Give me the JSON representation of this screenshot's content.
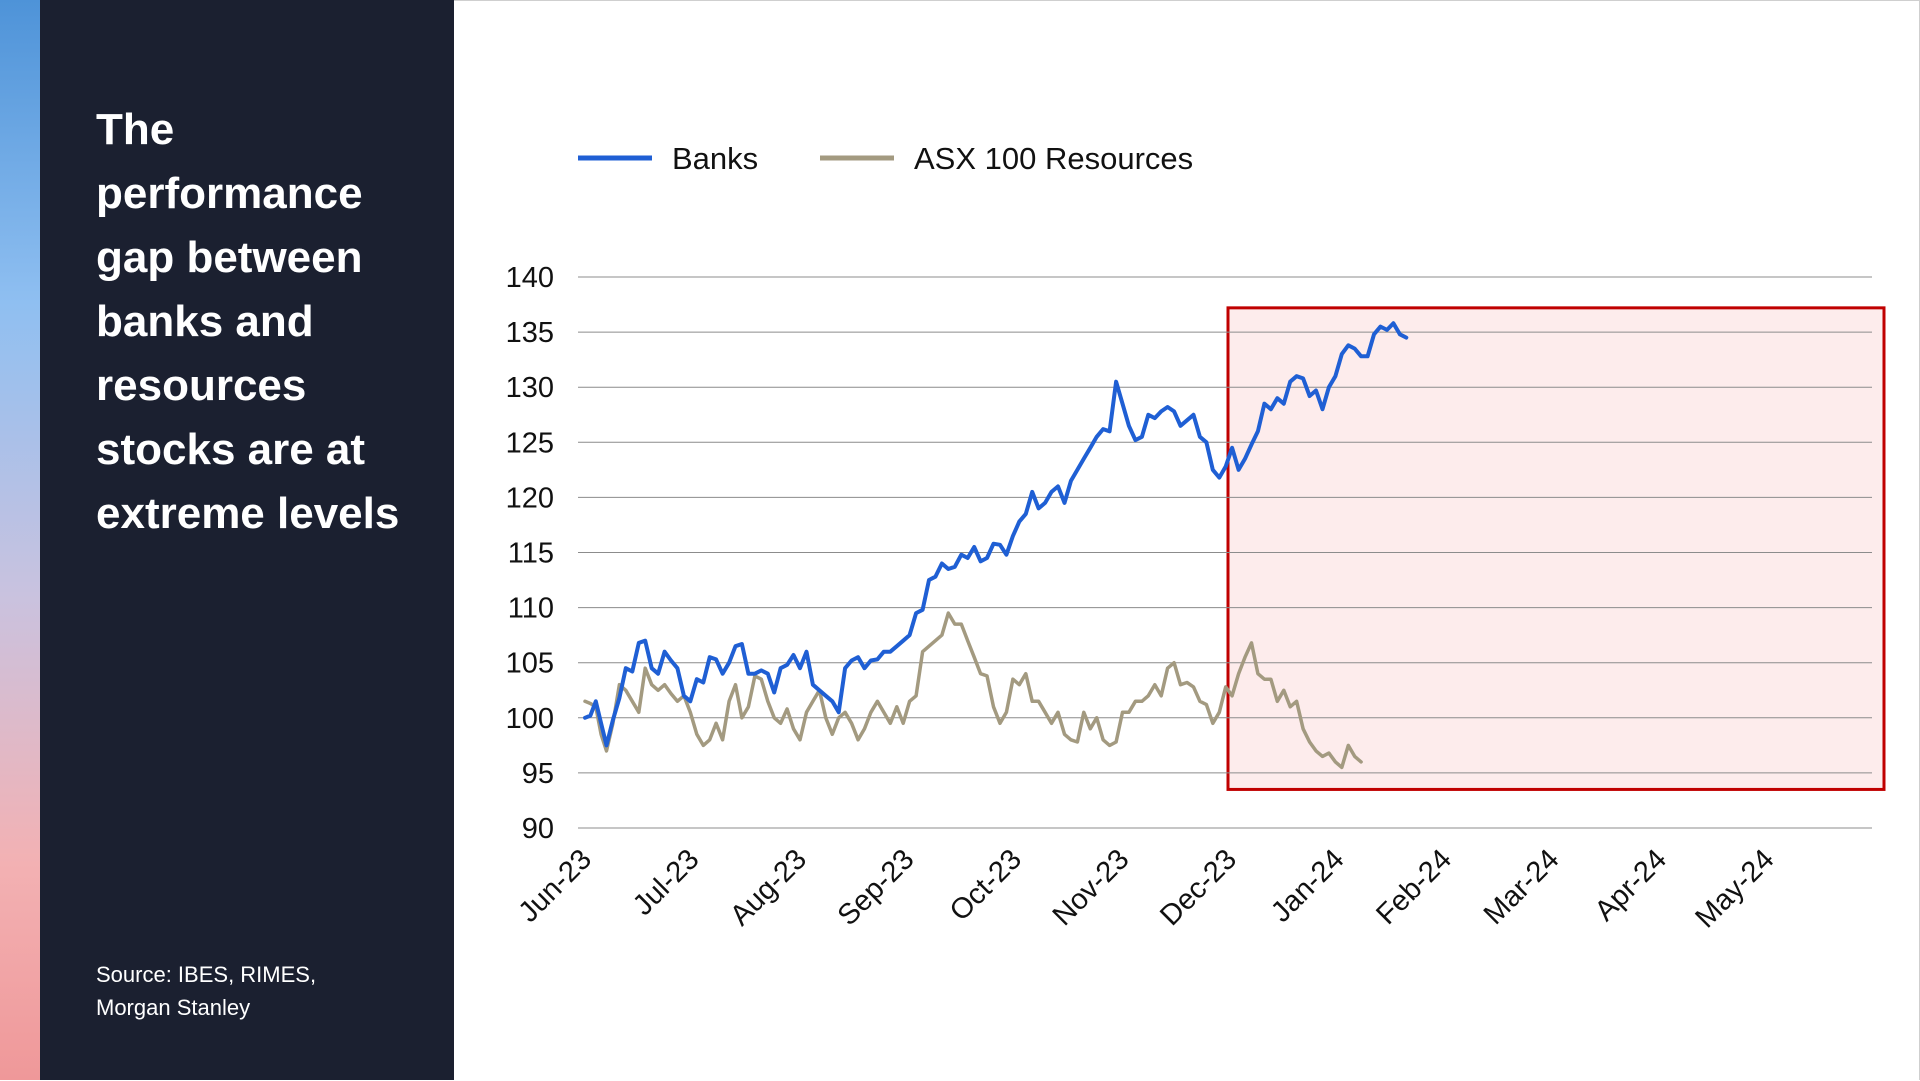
{
  "headline": "The performance gap between banks and resources stocks are at extreme levels",
  "source": "Source: IBES, RIMES, Morgan Stanley",
  "colors": {
    "banks": "#1f5fd4",
    "resources": "#a39a80",
    "highlight_fill": "#fdecec",
    "highlight_border": "#c00000",
    "sidebar": "#1b2030"
  },
  "chart_data": {
    "type": "line",
    "title": "",
    "xlabel": "",
    "ylabel": "",
    "ylim": [
      90,
      140
    ],
    "yticks": [
      90,
      95,
      100,
      105,
      110,
      115,
      120,
      125,
      130,
      135,
      140
    ],
    "x_tick_labels": [
      "Jun-23",
      "Jul-23",
      "Aug-23",
      "Sep-23",
      "Oct-23",
      "Nov-23",
      "Dec-23",
      "Jan-24",
      "Feb-24",
      "Mar-24",
      "Apr-24",
      "May-24"
    ],
    "grid": "horizontal",
    "legend": "top-left",
    "highlight_region": {
      "from": "Dec-23",
      "to": "May-24",
      "ymin": 93.5,
      "ymax": 137.2
    },
    "series": [
      {
        "name": "Banks",
        "points": [
          [
            0,
            100.0
          ],
          [
            0.05,
            100.2
          ],
          [
            0.1,
            101.5
          ],
          [
            0.15,
            99.5
          ],
          [
            0.2,
            97.5
          ],
          [
            0.26,
            99.8
          ],
          [
            0.32,
            101.8
          ],
          [
            0.38,
            104.5
          ],
          [
            0.44,
            104.2
          ],
          [
            0.5,
            106.8
          ],
          [
            0.56,
            107.0
          ],
          [
            0.62,
            104.5
          ],
          [
            0.68,
            104.0
          ],
          [
            0.74,
            106.0
          ],
          [
            0.8,
            105.2
          ],
          [
            0.86,
            104.5
          ],
          [
            0.92,
            102.0
          ],
          [
            0.98,
            101.5
          ],
          [
            1.04,
            103.5
          ],
          [
            1.1,
            103.2
          ],
          [
            1.16,
            105.5
          ],
          [
            1.22,
            105.3
          ],
          [
            1.28,
            104.0
          ],
          [
            1.34,
            105.0
          ],
          [
            1.4,
            106.5
          ],
          [
            1.46,
            106.7
          ],
          [
            1.52,
            104.0
          ],
          [
            1.58,
            104.0
          ],
          [
            1.64,
            104.3
          ],
          [
            1.7,
            104.0
          ],
          [
            1.76,
            102.3
          ],
          [
            1.82,
            104.5
          ],
          [
            1.88,
            104.8
          ],
          [
            1.94,
            105.7
          ],
          [
            2.0,
            104.5
          ],
          [
            2.06,
            106.0
          ],
          [
            2.12,
            103.0
          ],
          [
            2.18,
            102.5
          ],
          [
            2.24,
            102.0
          ],
          [
            2.3,
            101.5
          ],
          [
            2.36,
            100.5
          ],
          [
            2.42,
            104.5
          ],
          [
            2.48,
            105.2
          ],
          [
            2.54,
            105.5
          ],
          [
            2.6,
            104.5
          ],
          [
            2.66,
            105.2
          ],
          [
            2.72,
            105.3
          ],
          [
            2.78,
            106.0
          ],
          [
            2.84,
            106.0
          ],
          [
            2.9,
            106.5
          ],
          [
            2.96,
            107.0
          ],
          [
            3.02,
            107.5
          ],
          [
            3.08,
            109.5
          ],
          [
            3.14,
            109.8
          ],
          [
            3.2,
            112.5
          ],
          [
            3.26,
            112.8
          ],
          [
            3.32,
            114.0
          ],
          [
            3.38,
            113.5
          ],
          [
            3.44,
            113.7
          ],
          [
            3.5,
            114.8
          ],
          [
            3.56,
            114.5
          ],
          [
            3.62,
            115.5
          ],
          [
            3.68,
            114.2
          ],
          [
            3.74,
            114.5
          ],
          [
            3.8,
            115.8
          ],
          [
            3.86,
            115.7
          ],
          [
            3.92,
            114.8
          ],
          [
            3.98,
            116.5
          ],
          [
            4.04,
            117.8
          ],
          [
            4.1,
            118.5
          ],
          [
            4.16,
            120.5
          ],
          [
            4.22,
            119.0
          ],
          [
            4.28,
            119.5
          ],
          [
            4.34,
            120.5
          ],
          [
            4.4,
            121.0
          ],
          [
            4.46,
            119.5
          ],
          [
            4.52,
            121.5
          ],
          [
            4.58,
            122.5
          ],
          [
            4.64,
            123.5
          ],
          [
            4.7,
            124.5
          ],
          [
            4.76,
            125.5
          ],
          [
            4.82,
            126.2
          ],
          [
            4.88,
            126.0
          ],
          [
            4.94,
            130.5
          ],
          [
            5.0,
            128.5
          ],
          [
            5.06,
            126.5
          ],
          [
            5.12,
            125.2
          ],
          [
            5.18,
            125.5
          ],
          [
            5.24,
            127.5
          ],
          [
            5.3,
            127.2
          ],
          [
            5.36,
            127.8
          ],
          [
            5.42,
            128.2
          ],
          [
            5.48,
            127.8
          ],
          [
            5.54,
            126.5
          ],
          [
            5.6,
            127.0
          ],
          [
            5.66,
            127.5
          ],
          [
            5.72,
            125.5
          ],
          [
            5.78,
            125.0
          ],
          [
            5.84,
            122.5
          ],
          [
            5.9,
            121.8
          ],
          [
            5.96,
            122.8
          ],
          [
            6.02,
            124.5
          ],
          [
            6.08,
            122.5
          ],
          [
            6.14,
            123.5
          ],
          [
            6.2,
            124.8
          ],
          [
            6.26,
            126.0
          ],
          [
            6.32,
            128.5
          ],
          [
            6.38,
            128.0
          ],
          [
            6.44,
            129.0
          ],
          [
            6.5,
            128.5
          ],
          [
            6.56,
            130.5
          ],
          [
            6.62,
            131.0
          ],
          [
            6.68,
            130.8
          ],
          [
            6.74,
            129.2
          ],
          [
            6.8,
            129.7
          ],
          [
            6.86,
            128.0
          ],
          [
            6.92,
            130.0
          ],
          [
            6.98,
            131.0
          ],
          [
            7.04,
            133.0
          ],
          [
            7.1,
            133.8
          ],
          [
            7.16,
            133.5
          ],
          [
            7.22,
            132.8
          ],
          [
            7.28,
            132.8
          ],
          [
            7.34,
            134.8
          ],
          [
            7.4,
            135.5
          ],
          [
            7.46,
            135.2
          ],
          [
            7.52,
            135.8
          ],
          [
            7.58,
            134.8
          ],
          [
            7.64,
            134.5
          ]
        ]
      },
      {
        "name": "ASX 100 Resources",
        "points": [
          [
            0,
            101.5
          ],
          [
            0.05,
            101.3
          ],
          [
            0.1,
            101.0
          ],
          [
            0.15,
            98.5
          ],
          [
            0.2,
            97.0
          ],
          [
            0.26,
            99.5
          ],
          [
            0.32,
            103.0
          ],
          [
            0.38,
            102.5
          ],
          [
            0.44,
            101.5
          ],
          [
            0.5,
            100.5
          ],
          [
            0.56,
            104.5
          ],
          [
            0.62,
            103.0
          ],
          [
            0.68,
            102.5
          ],
          [
            0.74,
            103.0
          ],
          [
            0.8,
            102.2
          ],
          [
            0.86,
            101.5
          ],
          [
            0.92,
            102.0
          ],
          [
            0.98,
            100.5
          ],
          [
            1.04,
            98.5
          ],
          [
            1.1,
            97.5
          ],
          [
            1.16,
            98.0
          ],
          [
            1.22,
            99.5
          ],
          [
            1.28,
            98.0
          ],
          [
            1.34,
            101.5
          ],
          [
            1.4,
            103.0
          ],
          [
            1.46,
            100.0
          ],
          [
            1.52,
            101.0
          ],
          [
            1.58,
            103.8
          ],
          [
            1.64,
            103.5
          ],
          [
            1.7,
            101.5
          ],
          [
            1.76,
            100.0
          ],
          [
            1.82,
            99.5
          ],
          [
            1.88,
            100.8
          ],
          [
            1.94,
            99.0
          ],
          [
            2.0,
            98.0
          ],
          [
            2.06,
            100.5
          ],
          [
            2.12,
            101.5
          ],
          [
            2.18,
            102.5
          ],
          [
            2.24,
            100.0
          ],
          [
            2.3,
            98.5
          ],
          [
            2.36,
            100.0
          ],
          [
            2.42,
            100.5
          ],
          [
            2.48,
            99.5
          ],
          [
            2.54,
            98.0
          ],
          [
            2.6,
            99.0
          ],
          [
            2.66,
            100.5
          ],
          [
            2.72,
            101.5
          ],
          [
            2.78,
            100.5
          ],
          [
            2.84,
            99.5
          ],
          [
            2.9,
            101.0
          ],
          [
            2.96,
            99.5
          ],
          [
            3.02,
            101.5
          ],
          [
            3.08,
            102.0
          ],
          [
            3.14,
            106.0
          ],
          [
            3.2,
            106.5
          ],
          [
            3.26,
            107.0
          ],
          [
            3.32,
            107.5
          ],
          [
            3.38,
            109.5
          ],
          [
            3.44,
            108.5
          ],
          [
            3.5,
            108.5
          ],
          [
            3.56,
            107.0
          ],
          [
            3.62,
            105.5
          ],
          [
            3.68,
            104.0
          ],
          [
            3.74,
            103.8
          ],
          [
            3.8,
            101.0
          ],
          [
            3.86,
            99.5
          ],
          [
            3.92,
            100.5
          ],
          [
            3.98,
            103.5
          ],
          [
            4.04,
            103.0
          ],
          [
            4.1,
            104.0
          ],
          [
            4.16,
            101.5
          ],
          [
            4.22,
            101.5
          ],
          [
            4.28,
            100.5
          ],
          [
            4.34,
            99.5
          ],
          [
            4.4,
            100.5
          ],
          [
            4.46,
            98.5
          ],
          [
            4.52,
            98.0
          ],
          [
            4.58,
            97.8
          ],
          [
            4.64,
            100.5
          ],
          [
            4.7,
            99.0
          ],
          [
            4.76,
            100.0
          ],
          [
            4.82,
            98.0
          ],
          [
            4.88,
            97.5
          ],
          [
            4.94,
            97.8
          ],
          [
            5.0,
            100.5
          ],
          [
            5.06,
            100.5
          ],
          [
            5.12,
            101.5
          ],
          [
            5.18,
            101.5
          ],
          [
            5.24,
            102.0
          ],
          [
            5.3,
            103.0
          ],
          [
            5.36,
            102.0
          ],
          [
            5.42,
            104.5
          ],
          [
            5.48,
            105.0
          ],
          [
            5.54,
            103.0
          ],
          [
            5.6,
            103.2
          ],
          [
            5.66,
            102.8
          ],
          [
            5.72,
            101.5
          ],
          [
            5.78,
            101.2
          ],
          [
            5.84,
            99.5
          ],
          [
            5.9,
            100.5
          ],
          [
            5.96,
            102.8
          ],
          [
            6.02,
            102.0
          ],
          [
            6.08,
            104.0
          ],
          [
            6.14,
            105.5
          ],
          [
            6.2,
            106.8
          ],
          [
            6.26,
            104.0
          ],
          [
            6.32,
            103.5
          ],
          [
            6.38,
            103.5
          ],
          [
            6.44,
            101.5
          ],
          [
            6.5,
            102.5
          ],
          [
            6.56,
            101.0
          ],
          [
            6.62,
            101.5
          ],
          [
            6.68,
            99.0
          ],
          [
            6.74,
            97.8
          ],
          [
            6.8,
            97.0
          ],
          [
            6.86,
            96.5
          ],
          [
            6.92,
            96.8
          ],
          [
            6.98,
            96.0
          ],
          [
            7.04,
            95.5
          ],
          [
            7.1,
            97.5
          ],
          [
            7.16,
            96.5
          ],
          [
            7.22,
            96.0
          ]
        ]
      }
    ]
  }
}
